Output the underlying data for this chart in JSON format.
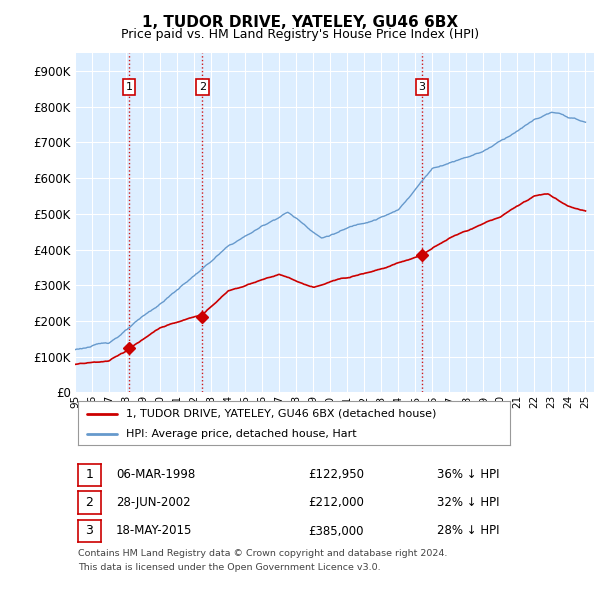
{
  "title": "1, TUDOR DRIVE, YATELEY, GU46 6BX",
  "subtitle": "Price paid vs. HM Land Registry's House Price Index (HPI)",
  "ylim": [
    0,
    950000
  ],
  "yticks": [
    0,
    100000,
    200000,
    300000,
    400000,
    500000,
    600000,
    700000,
    800000,
    900000
  ],
  "ytick_labels": [
    "£0",
    "£100K",
    "£200K",
    "£300K",
    "£400K",
    "£500K",
    "£600K",
    "£700K",
    "£800K",
    "£900K"
  ],
  "plot_bg_color": "#ddeeff",
  "fig_bg_color": "#ffffff",
  "grid_color": "#ffffff",
  "hpi_color": "#6699cc",
  "price_color": "#cc0000",
  "sales": [
    {
      "date_num": 1998.18,
      "price": 122950,
      "label": "1"
    },
    {
      "date_num": 2002.49,
      "price": 212000,
      "label": "2"
    },
    {
      "date_num": 2015.38,
      "price": 385000,
      "label": "3"
    }
  ],
  "legend_property_label": "1, TUDOR DRIVE, YATELEY, GU46 6BX (detached house)",
  "legend_hpi_label": "HPI: Average price, detached house, Hart",
  "footnote1": "Contains HM Land Registry data © Crown copyright and database right 2024.",
  "footnote2": "This data is licensed under the Open Government Licence v3.0.",
  "table_rows": [
    [
      "1",
      "06-MAR-1998",
      "£122,950",
      "36% ↓ HPI"
    ],
    [
      "2",
      "28-JUN-2002",
      "£212,000",
      "32% ↓ HPI"
    ],
    [
      "3",
      "18-MAY-2015",
      "£385,000",
      "28% ↓ HPI"
    ]
  ],
  "xstart": 1995,
  "xend": 2025
}
